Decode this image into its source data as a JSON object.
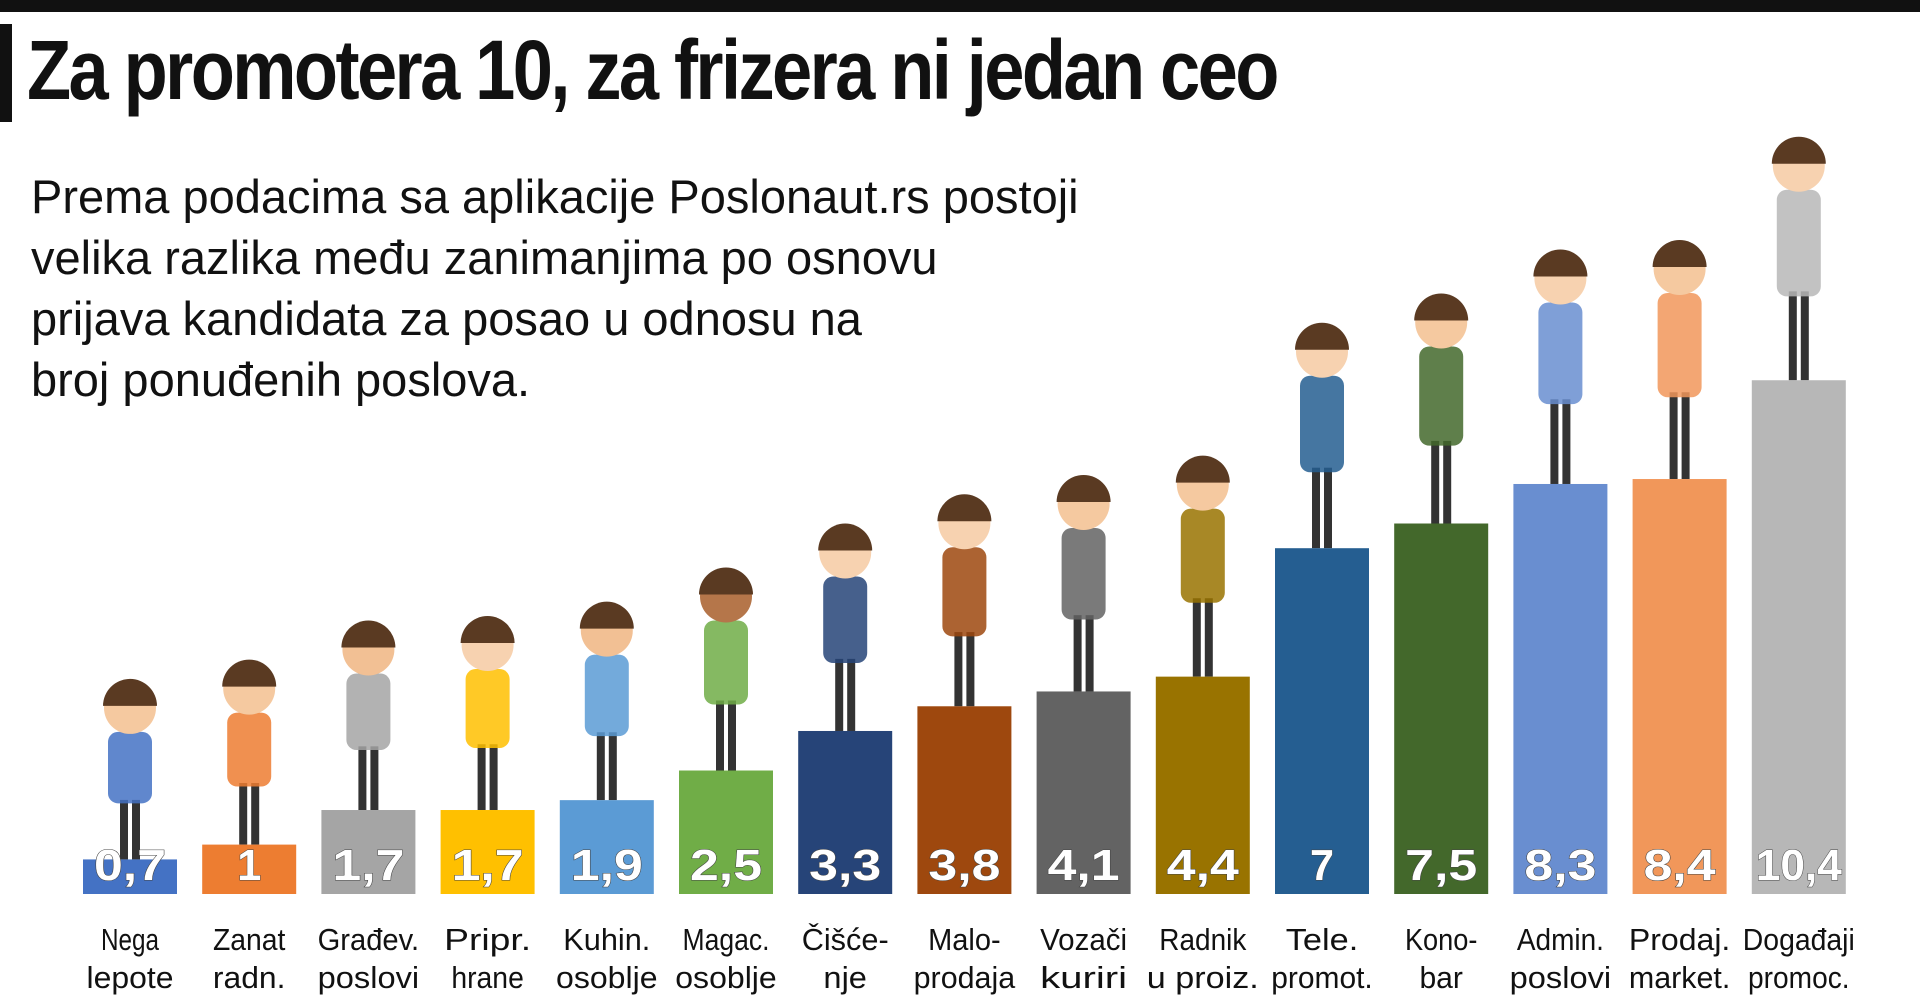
{
  "title": "Za promotera 10, za frizera ni jedan ceo",
  "subtitle_lines": [
    "Prema podacima sa aplikacije Poslonaut.rs postoji",
    "velika razlika među zanimanjima po osnovu",
    "prijava kandidata za posao u odnosu na",
    "broj ponuđenih poslova."
  ],
  "chart_data": {
    "type": "bar",
    "title": "Za promotera 10, za frizera ni jedan ceo",
    "categories": [
      [
        "Nega",
        "lepote"
      ],
      [
        "Zanat",
        "radn."
      ],
      [
        "Građev.",
        "poslovi"
      ],
      [
        "Pripr.",
        "hrane"
      ],
      [
        "Kuhin.",
        "osoblje"
      ],
      [
        "Magac.",
        "osoblje"
      ],
      [
        "Čišće-",
        "nje"
      ],
      [
        "Malo-",
        "prodaja"
      ],
      [
        "Vozači",
        "kuriri"
      ],
      [
        "Radnik",
        "u proiz."
      ],
      [
        "Tele.",
        "promot."
      ],
      [
        "Kono-",
        "bar"
      ],
      [
        "Admin.",
        "poslovi"
      ],
      [
        "Prodaj.",
        "market."
      ],
      [
        "Događaji",
        "promoc."
      ]
    ],
    "values": [
      0.7,
      1,
      1.7,
      1.7,
      1.9,
      2.5,
      3.3,
      3.8,
      4.1,
      4.4,
      7,
      7.5,
      8.3,
      8.4,
      10.4
    ],
    "value_labels": [
      "0,7",
      "1",
      "1,7",
      "1,7",
      "1,9",
      "2,5",
      "3,3",
      "3,8",
      "4,1",
      "4,4",
      "7",
      "7,5",
      "8,3",
      "8,4",
      "10,4"
    ],
    "colors": [
      "#4472c4",
      "#ed7d31",
      "#a5a5a5",
      "#ffc000",
      "#5b9bd5",
      "#70ad47",
      "#264478",
      "#9e480e",
      "#636363",
      "#997300",
      "#255e91",
      "#43682b",
      "#698ed0",
      "#f1975a",
      "#b7b7b7"
    ],
    "xlabel": "",
    "ylabel": "",
    "ylim": [
      0,
      10.4
    ],
    "grid": false,
    "legend": "none"
  }
}
